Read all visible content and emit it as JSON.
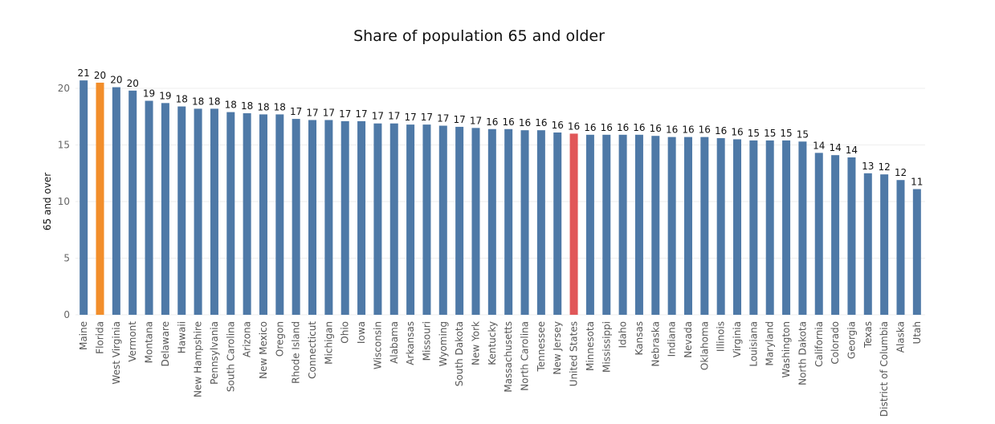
{
  "chart_data": {
    "type": "bar",
    "title": "Share of population 65 and older",
    "xlabel": "",
    "ylabel": "65 and over",
    "ylim": [
      0,
      21.5
    ],
    "yticks": [
      0,
      5,
      10,
      15,
      20
    ],
    "grid": true,
    "legend": "none",
    "colors": {
      "default": "#4e79a7",
      "highlight_state": "#f28e2b",
      "highlight_national": "#e15759",
      "grid": "#eeeeee"
    },
    "categories": [
      "Maine",
      "Florida",
      "West Virginia",
      "Vermont",
      "Montana",
      "Delaware",
      "Hawaii",
      "New Hampshire",
      "Pennsylvania",
      "South Carolina",
      "Arizona",
      "New Mexico",
      "Oregon",
      "Rhode Island",
      "Connecticut",
      "Michigan",
      "Ohio",
      "Iowa",
      "Wisconsin",
      "Alabama",
      "Arkansas",
      "Missouri",
      "Wyoming",
      "South Dakota",
      "New York",
      "Kentucky",
      "Massachusetts",
      "North Carolina",
      "Tennessee",
      "New Jersey",
      "United States",
      "Minnesota",
      "Mississippi",
      "Idaho",
      "Kansas",
      "Nebraska",
      "Indiana",
      "Nevada",
      "Oklahoma",
      "Illinois",
      "Virginia",
      "Louisiana",
      "Maryland",
      "Washington",
      "North Dakota",
      "California",
      "Colorado",
      "Georgia",
      "Texas",
      "District of Columbia",
      "Alaska",
      "Utah"
    ],
    "values": [
      20.7,
      20.5,
      20.1,
      19.8,
      18.9,
      18.7,
      18.4,
      18.2,
      18.2,
      17.9,
      17.8,
      17.7,
      17.7,
      17.3,
      17.2,
      17.2,
      17.1,
      17.1,
      16.9,
      16.9,
      16.8,
      16.8,
      16.7,
      16.6,
      16.5,
      16.4,
      16.4,
      16.3,
      16.3,
      16.1,
      16.0,
      15.9,
      15.9,
      15.9,
      15.9,
      15.8,
      15.7,
      15.7,
      15.7,
      15.6,
      15.5,
      15.4,
      15.4,
      15.4,
      15.3,
      14.3,
      14.1,
      13.9,
      12.5,
      12.4,
      11.9,
      11.1
    ],
    "labels": [
      "21",
      "20",
      "20",
      "20",
      "19",
      "19",
      "18",
      "18",
      "18",
      "18",
      "18",
      "18",
      "18",
      "17",
      "17",
      "17",
      "17",
      "17",
      "17",
      "17",
      "17",
      "17",
      "17",
      "17",
      "17",
      "16",
      "16",
      "16",
      "16",
      "16",
      "16",
      "16",
      "16",
      "16",
      "16",
      "16",
      "16",
      "16",
      "16",
      "16",
      "16",
      "15",
      "15",
      "15",
      "15",
      "14",
      "14",
      "14",
      "13",
      "12",
      "12",
      "11"
    ],
    "highlight": {
      "Florida": "highlight_state",
      "United States": "highlight_national"
    }
  }
}
